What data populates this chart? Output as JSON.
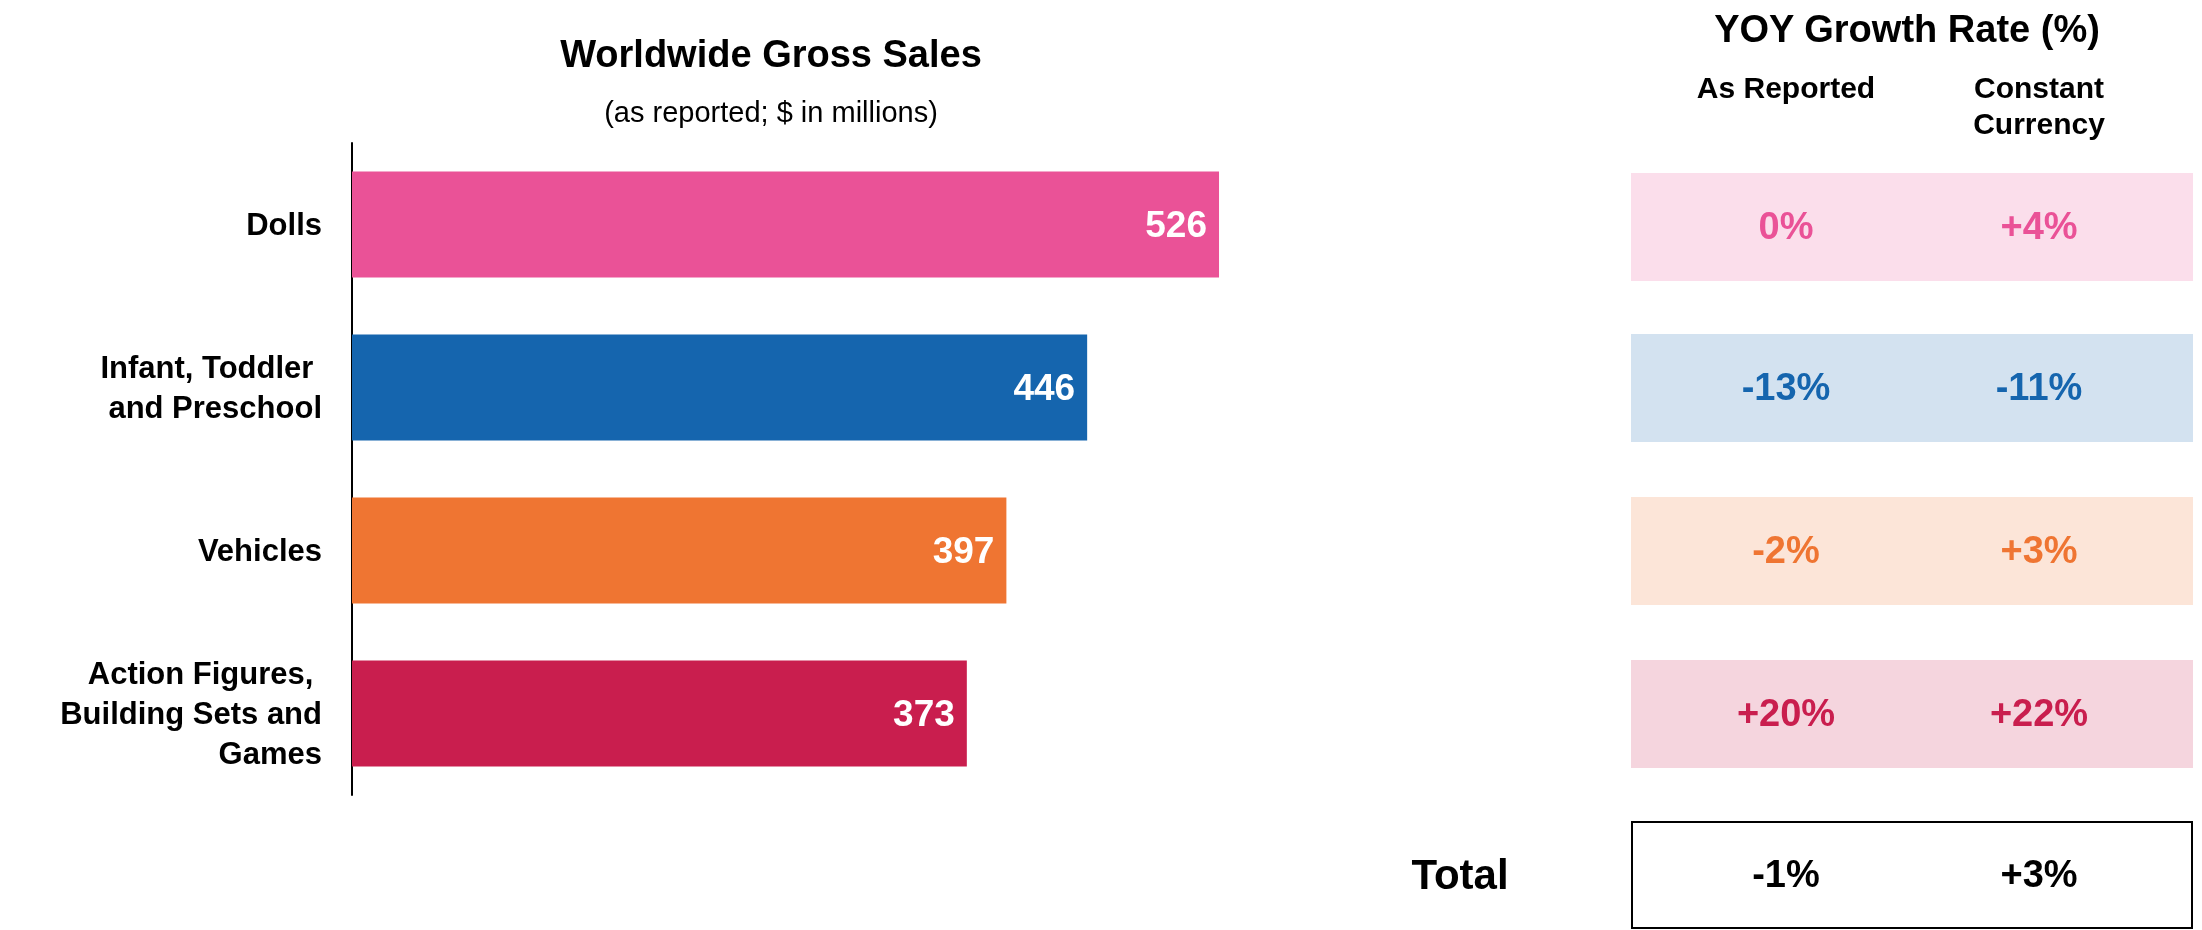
{
  "chart_data": [
    {
      "type": "bar",
      "orientation": "horizontal",
      "title": "Worldwide Gross Sales",
      "subtitle": "(as reported; $ in millions)",
      "categories": [
        "Dolls",
        "Infant, Toddler and Preschool",
        "Vehicles",
        "Action Figures, Building Sets and Games"
      ],
      "values": [
        526,
        446,
        397,
        373
      ],
      "colors": [
        "#ea5297",
        "#1565ae",
        "#ef7532",
        "#c91e4e"
      ],
      "data_labels": true,
      "tick_labels": "y"
    },
    {
      "type": "other",
      "title": "YOY Growth Rate (%)",
      "categories": [
        "As Reported",
        "Constant Currency"
      ],
      "y_categories": [
        null,
        null,
        null,
        null,
        "Total"
      ],
      "cell_labels": [
        [
          "0%",
          "+4%"
        ],
        [
          "-13%",
          "-11%"
        ],
        [
          "-2%",
          "+3%"
        ],
        [
          "+20%",
          "+22%"
        ],
        [
          "-1%",
          "+3%"
        ]
      ],
      "colors": [
        "#ea5297",
        "#1565ae",
        "#ef7532",
        "#c91e4e",
        "#000000"
      ]
    }
  ]
}
